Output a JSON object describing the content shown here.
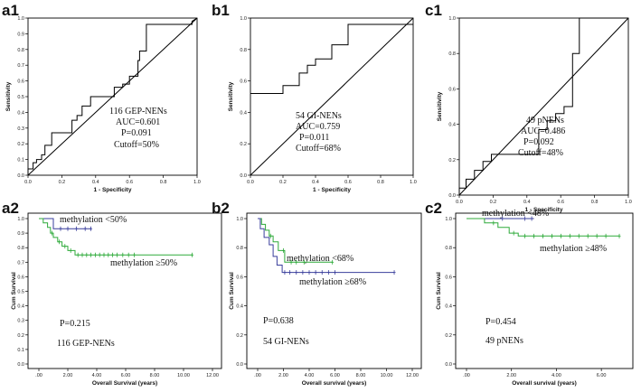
{
  "chart_data": [
    {
      "id": "a1",
      "panel_label": "a1",
      "type": "line",
      "subtype": "roc",
      "xlabel": "1 - Specificity",
      "ylabel": "Sensitivity",
      "xlim": [
        0,
        1
      ],
      "ylim": [
        0,
        1
      ],
      "xticks": [
        "0.0",
        "0.2",
        "0.4",
        "0.6",
        "0.8",
        "1.0"
      ],
      "yticks": [
        "0.0",
        "0.1",
        "0.2",
        "0.3",
        "0.4",
        "0.5",
        "0.6",
        "0.7",
        "0.8",
        "0.9",
        "1.0"
      ],
      "annotation": [
        "116 GEP-NENs",
        "AUC=0.601",
        "P=0.091",
        "Cutoff=50%"
      ],
      "curve": [
        [
          0,
          0
        ],
        [
          0,
          0.04
        ],
        [
          0.03,
          0.04
        ],
        [
          0.03,
          0.08
        ],
        [
          0.05,
          0.08
        ],
        [
          0.05,
          0.1
        ],
        [
          0.08,
          0.1
        ],
        [
          0.08,
          0.13
        ],
        [
          0.1,
          0.13
        ],
        [
          0.1,
          0.19
        ],
        [
          0.14,
          0.19
        ],
        [
          0.14,
          0.27
        ],
        [
          0.26,
          0.27
        ],
        [
          0.26,
          0.35
        ],
        [
          0.29,
          0.35
        ],
        [
          0.29,
          0.38
        ],
        [
          0.32,
          0.38
        ],
        [
          0.32,
          0.44
        ],
        [
          0.37,
          0.44
        ],
        [
          0.37,
          0.5
        ],
        [
          0.51,
          0.5
        ],
        [
          0.51,
          0.56
        ],
        [
          0.56,
          0.56
        ],
        [
          0.56,
          0.58
        ],
        [
          0.6,
          0.58
        ],
        [
          0.6,
          0.63
        ],
        [
          0.65,
          0.63
        ],
        [
          0.65,
          0.73
        ],
        [
          0.66,
          0.73
        ],
        [
          0.66,
          0.79
        ],
        [
          0.7,
          0.79
        ],
        [
          0.7,
          0.96
        ],
        [
          0.97,
          0.96
        ],
        [
          0.97,
          0.98
        ],
        [
          1,
          1
        ]
      ]
    },
    {
      "id": "b1",
      "panel_label": "b1",
      "type": "line",
      "subtype": "roc",
      "xlabel": "1 - Specificity",
      "ylabel": "Sensitivity",
      "xlim": [
        0,
        1
      ],
      "ylim": [
        0,
        1
      ],
      "xticks": [
        "0.0",
        "0.2",
        "0.4",
        "0.6",
        "0.8",
        "1.0"
      ],
      "yticks": [
        "0.0",
        "0.2",
        "0.4",
        "0.6",
        "0.8",
        "1.0"
      ],
      "annotation": [
        "54 GI-NENs",
        "AUC=0.759",
        "P=0.011",
        "Cutoff=68%"
      ],
      "curve": [
        [
          0,
          0.52
        ],
        [
          0.2,
          0.52
        ],
        [
          0.2,
          0.57
        ],
        [
          0.3,
          0.57
        ],
        [
          0.3,
          0.65
        ],
        [
          0.35,
          0.65
        ],
        [
          0.35,
          0.7
        ],
        [
          0.4,
          0.7
        ],
        [
          0.4,
          0.74
        ],
        [
          0.5,
          0.74
        ],
        [
          0.5,
          0.83
        ],
        [
          0.6,
          0.83
        ],
        [
          0.6,
          0.96
        ],
        [
          1,
          0.96
        ]
      ]
    },
    {
      "id": "c1",
      "panel_label": "c1",
      "type": "line",
      "subtype": "roc",
      "xlabel": "1 - Specificity",
      "ylabel": "Sensitivity",
      "xlim": [
        0,
        1
      ],
      "ylim": [
        0,
        1
      ],
      "xticks": [
        "0.0",
        "0.2",
        "0.4",
        "0.6",
        "0.8",
        "1.0"
      ],
      "yticks": [
        "0.0",
        "0.2",
        "0.4",
        "0.6",
        "0.8",
        "1.0"
      ],
      "annotation": [
        "49 pNENs",
        "AUC=0.486",
        "P=0.092",
        "Cutoff=48%"
      ],
      "curve": [
        [
          0,
          0
        ],
        [
          0,
          0.04
        ],
        [
          0.04,
          0.04
        ],
        [
          0.04,
          0.09
        ],
        [
          0.09,
          0.09
        ],
        [
          0.09,
          0.14
        ],
        [
          0.14,
          0.14
        ],
        [
          0.14,
          0.19
        ],
        [
          0.19,
          0.19
        ],
        [
          0.19,
          0.23
        ],
        [
          0.47,
          0.23
        ],
        [
          0.47,
          0.37
        ],
        [
          0.52,
          0.37
        ],
        [
          0.52,
          0.42
        ],
        [
          0.57,
          0.42
        ],
        [
          0.57,
          0.46
        ],
        [
          0.62,
          0.46
        ],
        [
          0.62,
          0.5
        ],
        [
          0.67,
          0.5
        ],
        [
          0.67,
          0.8
        ],
        [
          0.71,
          0.8
        ],
        [
          0.71,
          1
        ],
        [
          1,
          1
        ]
      ]
    },
    {
      "id": "a2",
      "panel_label": "a2",
      "type": "line",
      "subtype": "kaplan-meier",
      "xlabel": "Overall Survival (years)",
      "ylabel": "Cum Survival",
      "xlim": [
        0,
        12
      ],
      "ylim": [
        0,
        1
      ],
      "xticks": [
        ".00",
        "2.00",
        "4.00",
        "6.00",
        "8.00",
        "10.00",
        "12.00"
      ],
      "yticks": [
        "0.0",
        "0.1",
        "0.2",
        "0.3",
        "0.4",
        "0.5",
        "0.6",
        "0.7",
        "0.8",
        "0.9",
        "1.0"
      ],
      "p_value": "P=0.215",
      "cohort": "116 GEP-NENs",
      "series": [
        {
          "name": "methylation <50%",
          "color": "#3a3f9c",
          "steps": [
            [
              0,
              1
            ],
            [
              1,
              1
            ],
            [
              1,
              0.93
            ],
            [
              3.6,
              0.93
            ]
          ],
          "censors": [
            [
              1.5,
              0.93
            ],
            [
              2.0,
              0.93
            ],
            [
              2.6,
              0.93
            ],
            [
              3.2,
              0.93
            ],
            [
              3.6,
              0.93
            ]
          ]
        },
        {
          "name": "methylation ≥50%",
          "color": "#2eaa3a",
          "steps": [
            [
              0,
              1
            ],
            [
              0.3,
              1
            ],
            [
              0.3,
              0.97
            ],
            [
              0.6,
              0.97
            ],
            [
              0.6,
              0.94
            ],
            [
              0.8,
              0.94
            ],
            [
              0.8,
              0.9
            ],
            [
              1.0,
              0.9
            ],
            [
              1.0,
              0.87
            ],
            [
              1.3,
              0.87
            ],
            [
              1.3,
              0.84
            ],
            [
              1.6,
              0.84
            ],
            [
              1.6,
              0.81
            ],
            [
              2.0,
              0.81
            ],
            [
              2.0,
              0.78
            ],
            [
              2.5,
              0.78
            ],
            [
              2.5,
              0.75
            ],
            [
              10.6,
              0.75
            ]
          ],
          "censors": [
            [
              0.9,
              0.9
            ],
            [
              1.4,
              0.84
            ],
            [
              1.8,
              0.81
            ],
            [
              2.2,
              0.78
            ],
            [
              2.7,
              0.75
            ],
            [
              3.0,
              0.75
            ],
            [
              3.3,
              0.75
            ],
            [
              3.6,
              0.75
            ],
            [
              3.9,
              0.75
            ],
            [
              4.2,
              0.75
            ],
            [
              4.5,
              0.75
            ],
            [
              4.8,
              0.75
            ],
            [
              5.1,
              0.75
            ],
            [
              5.4,
              0.75
            ],
            [
              5.8,
              0.75
            ],
            [
              6.2,
              0.75
            ],
            [
              6.6,
              0.75
            ],
            [
              10.6,
              0.75
            ]
          ]
        }
      ]
    },
    {
      "id": "b2",
      "panel_label": "b2",
      "type": "line",
      "subtype": "kaplan-meier",
      "xlabel": "Overall survival (years)",
      "ylabel": "Cum Survival",
      "xlim": [
        0,
        12
      ],
      "ylim": [
        0,
        1
      ],
      "xticks": [
        ".00",
        "2.00",
        "4.00",
        "6.00",
        "8.00",
        "10.00",
        "12.00"
      ],
      "yticks": [
        "0.0",
        "0.2",
        "0.4",
        "0.6",
        "0.8",
        "1.0"
      ],
      "p_value": "P=0.638",
      "cohort": "54 GI-NENs",
      "series": [
        {
          "name": "methylation <68%",
          "color": "#2eaa3a",
          "steps": [
            [
              0,
              1
            ],
            [
              0.3,
              1
            ],
            [
              0.3,
              0.96
            ],
            [
              0.6,
              0.96
            ],
            [
              0.6,
              0.92
            ],
            [
              0.9,
              0.92
            ],
            [
              0.9,
              0.88
            ],
            [
              1.2,
              0.88
            ],
            [
              1.2,
              0.84
            ],
            [
              1.6,
              0.84
            ],
            [
              1.6,
              0.78
            ],
            [
              2.1,
              0.78
            ],
            [
              2.1,
              0.7
            ],
            [
              5.8,
              0.7
            ]
          ],
          "censors": [
            [
              1.0,
              0.88
            ],
            [
              2.0,
              0.78
            ],
            [
              2.6,
              0.7
            ],
            [
              3.0,
              0.7
            ],
            [
              3.6,
              0.7
            ],
            [
              5.8,
              0.7
            ]
          ]
        },
        {
          "name": "methylation ≥68%",
          "color": "#3a3f9c",
          "steps": [
            [
              0,
              1
            ],
            [
              0.2,
              1
            ],
            [
              0.2,
              0.93
            ],
            [
              0.5,
              0.93
            ],
            [
              0.5,
              0.87
            ],
            [
              0.9,
              0.87
            ],
            [
              0.9,
              0.82
            ],
            [
              1.2,
              0.82
            ],
            [
              1.2,
              0.74
            ],
            [
              1.5,
              0.74
            ],
            [
              1.5,
              0.68
            ],
            [
              1.9,
              0.68
            ],
            [
              1.9,
              0.63
            ],
            [
              10.6,
              0.63
            ]
          ],
          "censors": [
            [
              2.1,
              0.63
            ],
            [
              2.5,
              0.63
            ],
            [
              3.0,
              0.63
            ],
            [
              3.5,
              0.63
            ],
            [
              4.0,
              0.63
            ],
            [
              4.5,
              0.63
            ],
            [
              5.0,
              0.63
            ],
            [
              5.5,
              0.63
            ],
            [
              6.0,
              0.63
            ],
            [
              10.6,
              0.63
            ]
          ]
        }
      ]
    },
    {
      "id": "c2",
      "panel_label": "c2",
      "type": "line",
      "subtype": "kaplan-meier",
      "xlabel": "Overall survival (years)",
      "ylabel": "Cum Survival",
      "xlim": [
        0,
        7
      ],
      "ylim": [
        0,
        1
      ],
      "xticks": [
        ".00",
        "2.00",
        "4.00",
        "6.00"
      ],
      "yticks": [
        "0.0",
        "0.2",
        "0.4",
        "0.6",
        "0.8",
        "1.0"
      ],
      "p_value": "P=0.454",
      "cohort": "49 pNENs",
      "series": [
        {
          "name": "methylation <48%",
          "color": "#3a3f9c",
          "steps": [
            [
              0,
              1
            ],
            [
              3.0,
              1
            ]
          ],
          "censors": [
            [
              1.6,
              1
            ],
            [
              2.6,
              1
            ],
            [
              2.9,
              1
            ]
          ]
        },
        {
          "name": "methylation ≥48%",
          "color": "#2eaa3a",
          "steps": [
            [
              0,
              1
            ],
            [
              0.8,
              1
            ],
            [
              0.8,
              0.97
            ],
            [
              1.4,
              0.97
            ],
            [
              1.4,
              0.94
            ],
            [
              1.9,
              0.94
            ],
            [
              1.9,
              0.9
            ],
            [
              2.3,
              0.9
            ],
            [
              2.3,
              0.88
            ],
            [
              6.8,
              0.88
            ]
          ],
          "censors": [
            [
              1.2,
              0.97
            ],
            [
              2.1,
              0.9
            ],
            [
              2.6,
              0.88
            ],
            [
              3.0,
              0.88
            ],
            [
              3.4,
              0.88
            ],
            [
              3.8,
              0.88
            ],
            [
              4.2,
              0.88
            ],
            [
              4.6,
              0.88
            ],
            [
              5.0,
              0.88
            ],
            [
              5.4,
              0.88
            ],
            [
              5.8,
              0.88
            ],
            [
              6.2,
              0.88
            ],
            [
              6.8,
              0.88
            ]
          ]
        }
      ]
    }
  ]
}
